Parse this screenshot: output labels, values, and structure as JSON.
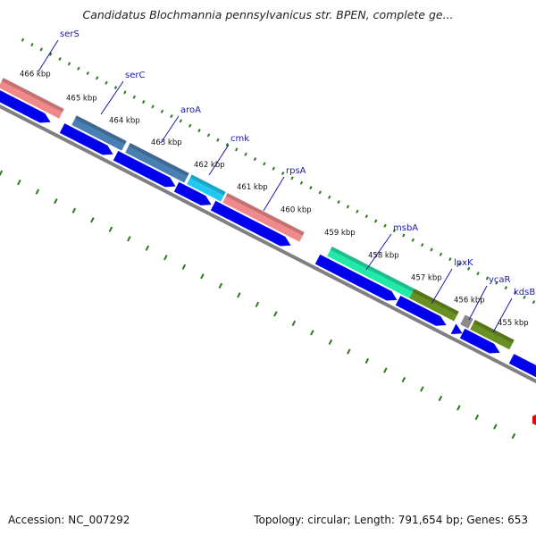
{
  "title": "Candidatus Blochmannia pennsylvanicus str. BPEN, complete ge...",
  "footer": {
    "accession": "Accession: NC_007292",
    "summary": "Topology: circular; Length: 791,654 bp; Genes: 653"
  },
  "colors": {
    "backbone": "#808080",
    "cds": "#0000ee",
    "tick": "#2a7a1a",
    "label_line": "#1a1aa8",
    "rRNA_marker": "#ee0000"
  },
  "kbp_labels": [
    "466 kbp",
    "465 kbp",
    "464 kbp",
    "463 kbp",
    "462 kbp",
    "461 kbp",
    "460 kbp",
    "459 kbp",
    "458 kbp",
    "457 kbp",
    "456 kbp",
    "455 kbp"
  ],
  "genes": [
    {
      "name": "serS",
      "color": "#f08a8a"
    },
    {
      "name": "serC",
      "color": "#4a7fb3"
    },
    {
      "name": "aroA",
      "color": "#4a7fb3"
    },
    {
      "name": "cmk",
      "color": "#22c8f0"
    },
    {
      "name": "rpsA",
      "color": "#f08a8a"
    },
    {
      "name": "msbA",
      "color": "#22e8a8"
    },
    {
      "name": "lpxK",
      "color": "#6a8f22"
    },
    {
      "name": "ycaR",
      "color": "#6a8f22"
    },
    {
      "name": "kdsB",
      "color": "#0000ee"
    }
  ]
}
